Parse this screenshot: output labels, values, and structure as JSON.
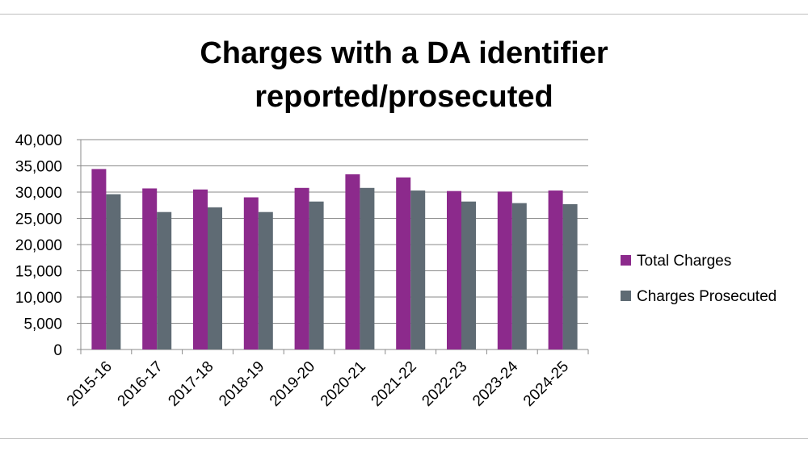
{
  "chart_data": {
    "type": "bar",
    "title": [
      "Charges with a DA identifier",
      "reported/prosecuted"
    ],
    "xlabel": "",
    "ylabel": "",
    "categories": [
      "2015-16",
      "2016-17",
      "2017-18",
      "2018-19",
      "2019-20",
      "2020-21",
      "2021-22",
      "2022-23",
      "2023-24",
      "2024-25"
    ],
    "series": [
      {
        "name": "Total Charges",
        "color": "#8c2a8c",
        "values": [
          34400,
          30700,
          30500,
          29000,
          30800,
          33400,
          32800,
          30200,
          30100,
          30300
        ]
      },
      {
        "name": "Charges Prosecuted",
        "color": "#5f6b74",
        "values": [
          29600,
          26200,
          27100,
          26200,
          28200,
          30800,
          30300,
          28200,
          27900,
          27700
        ]
      }
    ],
    "ylim": [
      0,
      40000
    ],
    "yticks": [
      0,
      5000,
      10000,
      15000,
      20000,
      25000,
      30000,
      35000,
      40000
    ],
    "ytick_labels": [
      "0",
      "5,000",
      "10,000",
      "15,000",
      "20,000",
      "25,000",
      "30,000",
      "35,000",
      "40,000"
    ],
    "grid": true,
    "legend_position": "right"
  }
}
